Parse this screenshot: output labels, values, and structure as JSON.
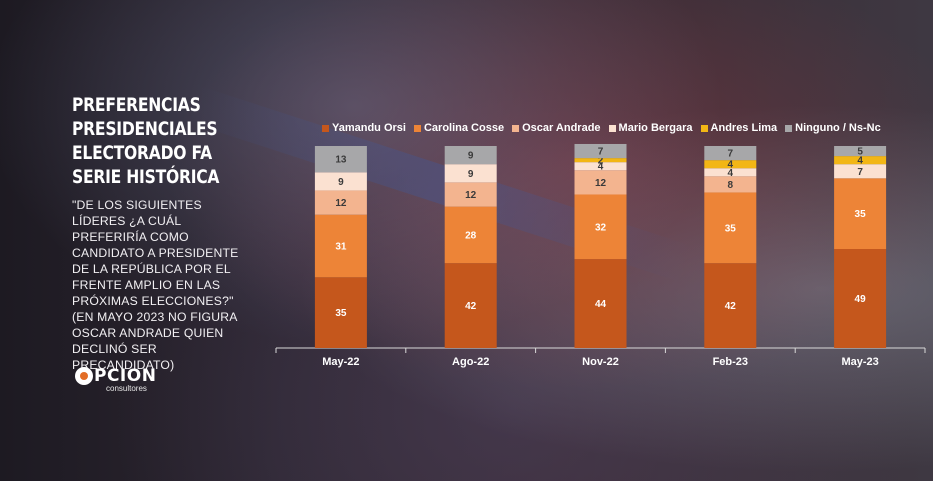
{
  "title": "PREFERENCIAS\nPRESIDENCIALES\nELECTORADO FA\nSERIE HISTÓRICA",
  "question": "\"DE LOS SIGUIENTES LÍDERES ¿A CUÁL PREFERIRÍA COMO CANDIDATO A PRESIDENTE DE LA REPÚBLICA POR EL FRENTE AMPLIO EN LAS PRÓXIMAS ELECCIONES?\" (EN MAYO 2023 NO FIGURA OSCAR ANDRADE QUIEN DECLINÓ SER PRECANDIDATO)",
  "logo": {
    "word": "PCION",
    "sub": "consultores"
  },
  "chart_data": {
    "type": "bar",
    "stacked": true,
    "categories": [
      "May-22",
      "Ago-22",
      "Nov-22",
      "Feb-23",
      "May-23"
    ],
    "ylim": [
      0,
      100
    ],
    "legend_position": "top",
    "series": [
      {
        "name": "Yamandu Orsi",
        "color": "#c5571c",
        "values": [
          35,
          42,
          44,
          42,
          49
        ]
      },
      {
        "name": "Carolina Cosse",
        "color": "#ed8437",
        "values": [
          31,
          28,
          32,
          35,
          35
        ]
      },
      {
        "name": "Oscar Andrade",
        "color": "#f3b48f",
        "values": [
          12,
          12,
          12,
          8,
          null
        ]
      },
      {
        "name": "Mario Bergara",
        "color": "#fbe1d1",
        "values": [
          9,
          9,
          4,
          4,
          7
        ]
      },
      {
        "name": "Andres Lima",
        "color": "#f2b615",
        "values": [
          null,
          null,
          2,
          4,
          4
        ]
      },
      {
        "name": "Ninguno / Ns-Nc",
        "color": "#a7a7a9",
        "values": [
          13,
          9,
          7,
          7,
          5
        ]
      }
    ]
  }
}
